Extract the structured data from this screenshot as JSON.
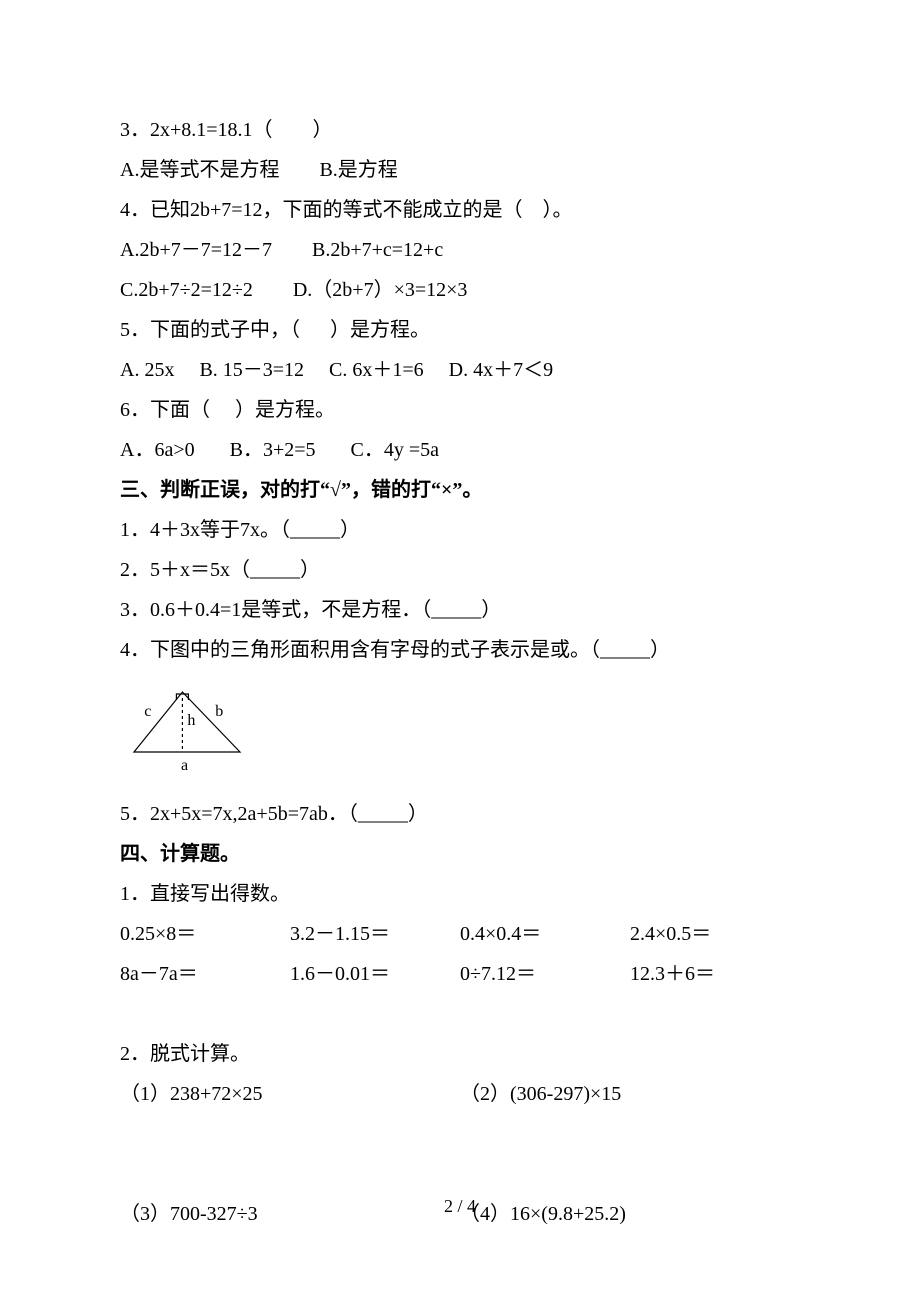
{
  "q3": {
    "text": "3．2x+8.1=18.1（        ）",
    "options": [
      "A.是等式不是方程        B.是方程"
    ]
  },
  "q4": {
    "text": "4．已知2b+7=12，下面的等式不能成立的是（    ）。",
    "options": [
      "A.2b+7－7=12－7        B.2b+7+c=12+c",
      "C.2b+7÷2=12÷2        D.（2b+7）×3=12×3"
    ]
  },
  "q5": {
    "text": "5．下面的式子中，（      ）是方程。",
    "options": [
      "A. 25x     B. 15－3=12     C. 6x＋1=6     D. 4x＋7＜9"
    ]
  },
  "q6": {
    "text": "6．下面（     ）是方程。",
    "options": [
      "A．6a>0       B．3+2=5       C．4y =5a"
    ]
  },
  "section3": {
    "title": "三、判断正误，对的打“√”，错的打“×”。",
    "items": [
      "1．4＋3x等于7x。（_____）",
      "2．5＋x＝5x（_____）",
      "3．0.6＋0.4=1是等式，不是方程．（_____）",
      "4．下图中的三角形面积用含有字母的式子表示是或。（_____）",
      "5．2x+5x=7x,2a+5b=7ab．（_____）"
    ]
  },
  "section4": {
    "title": "四、计算题。",
    "sub1": {
      "title": "1．直接写出得数。",
      "row1": [
        "0.25×8＝",
        "3.2－1.15＝",
        "0.4×0.4＝",
        "2.4×0.5＝"
      ],
      "row2": [
        "8a－7a＝",
        "1.6－0.01＝",
        "0÷7.12＝",
        "12.3＋6＝"
      ]
    },
    "sub2": {
      "title": "2．脱式计算。",
      "row1": [
        "（1）238+72×25",
        "（2）(306-297)×15"
      ],
      "row2": [
        "（3）700-327÷3",
        "（4）16×(9.8+25.2)"
      ]
    }
  },
  "triangle": {
    "label_a": "a",
    "label_b": "b",
    "label_c": "c",
    "label_h": "h",
    "stroke": "#000000",
    "stroke_width": 1.2,
    "width": 130,
    "height": 92
  },
  "page_number": "2 / 4"
}
